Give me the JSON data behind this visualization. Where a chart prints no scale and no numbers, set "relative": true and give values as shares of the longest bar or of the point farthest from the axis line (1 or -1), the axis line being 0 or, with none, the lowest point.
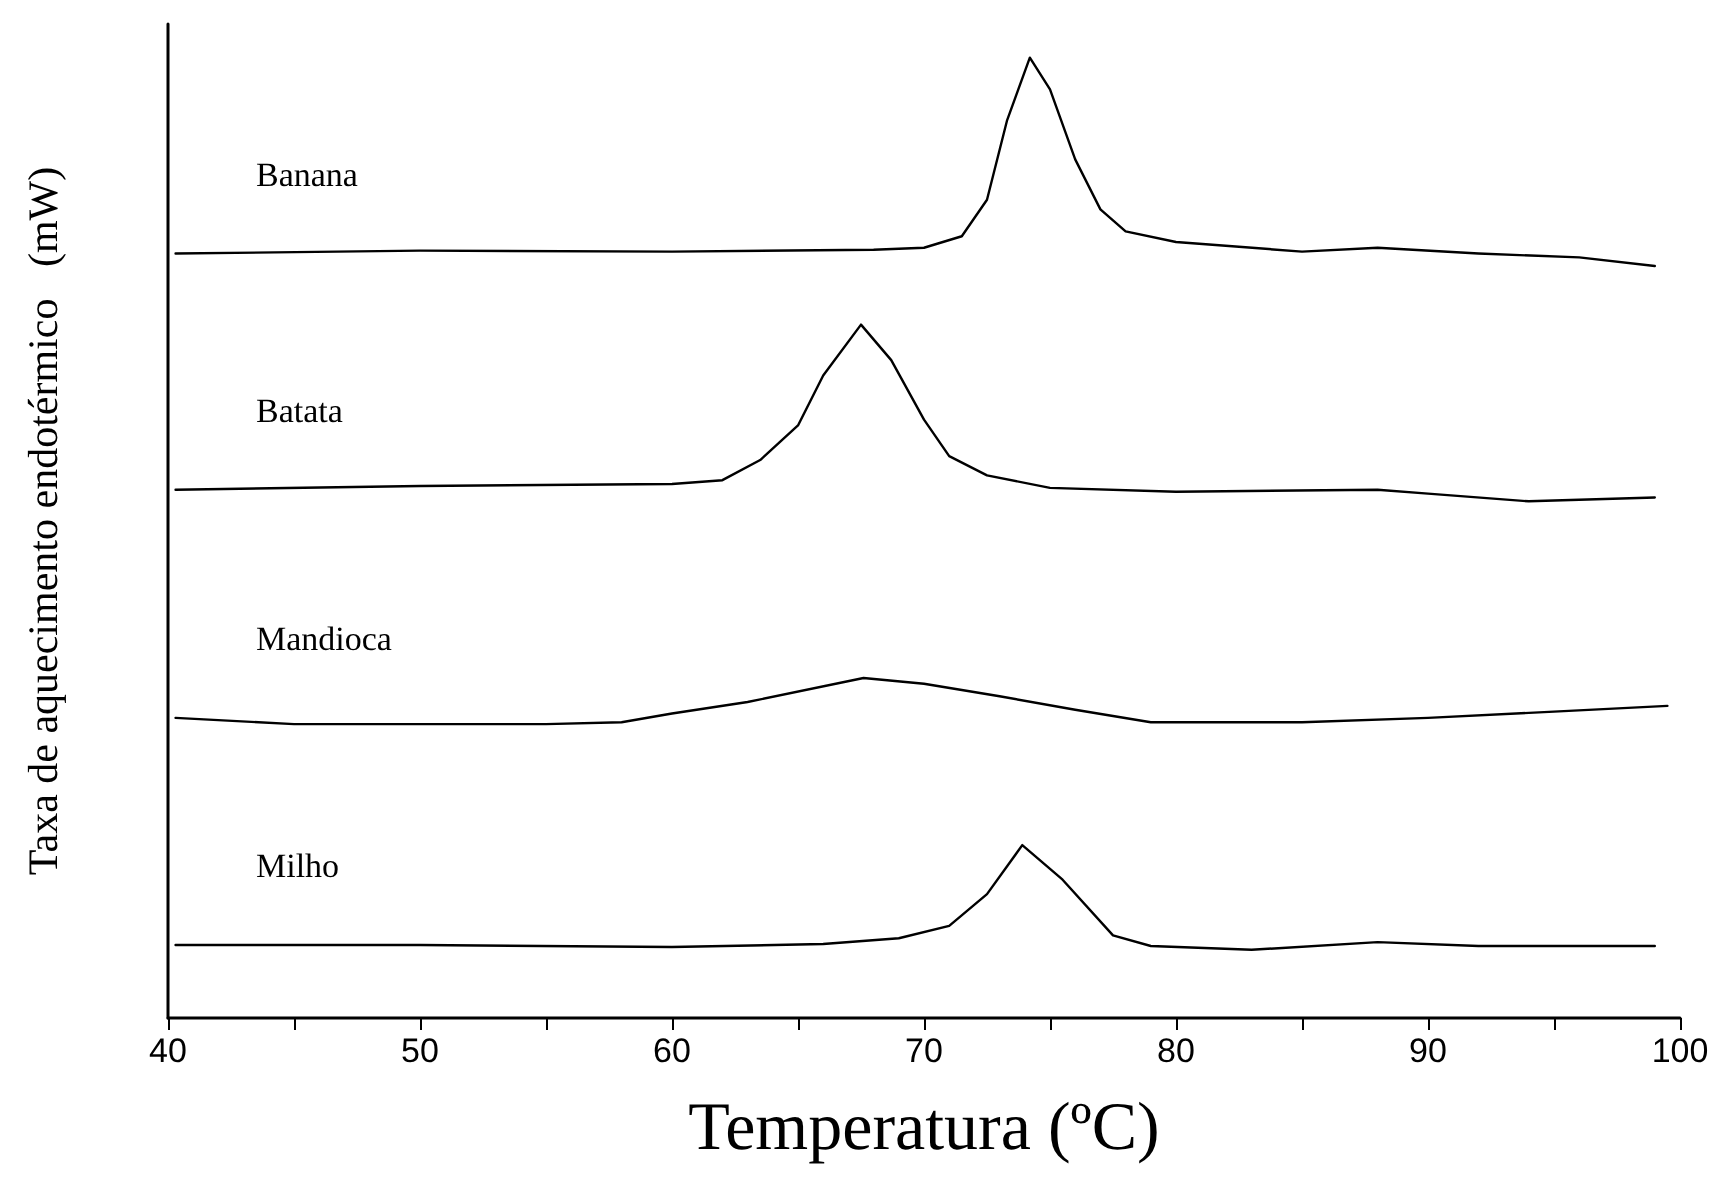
{
  "chart_data": {
    "type": "line",
    "relative": true,
    "xlabel": "Temperatura (ºC)",
    "ylabel": "Taxa de aquecimento endotérmico   (mW)",
    "xlim": [
      40,
      100
    ],
    "xticks": [
      40,
      50,
      60,
      70,
      80,
      90,
      100
    ],
    "tick_labels": "x",
    "grid": false,
    "legend": false,
    "marker": "none",
    "line_style": "solid",
    "series": [
      {
        "name": "Banana",
        "color": "#000000",
        "x": [
          40.3,
          50,
          60,
          68,
          70,
          71.5,
          72.5,
          73.3,
          74.2,
          75,
          76,
          77,
          78,
          80,
          85,
          88,
          92,
          96,
          99
        ],
        "values": [
          0.796,
          0.799,
          0.798,
          0.8,
          0.802,
          0.814,
          0.852,
          0.935,
          1.0,
          0.967,
          0.894,
          0.842,
          0.819,
          0.808,
          0.798,
          0.802,
          0.796,
          0.792,
          0.783
        ]
      },
      {
        "name": "Batata",
        "color": "#000000",
        "x": [
          40.3,
          50,
          60,
          62,
          63.5,
          65,
          66,
          67.5,
          68.7,
          70,
          71,
          72.5,
          75,
          80,
          88,
          90,
          94,
          99
        ],
        "values": [
          0.55,
          0.554,
          0.556,
          0.56,
          0.581,
          0.617,
          0.669,
          0.722,
          0.685,
          0.623,
          0.585,
          0.565,
          0.552,
          0.548,
          0.55,
          0.546,
          0.538,
          0.542
        ]
      },
      {
        "name": "Mandioca",
        "color": "#000000",
        "x": [
          40.3,
          45,
          55,
          58,
          60,
          63,
          67.6,
          70,
          73,
          76,
          79,
          85,
          90,
          95,
          99.5
        ],
        "values": [
          0.3125,
          0.306,
          0.306,
          0.308,
          0.317,
          0.329,
          0.354,
          0.348,
          0.335,
          0.321,
          0.308,
          0.308,
          0.3125,
          0.319,
          0.325
        ]
      },
      {
        "name": "Milho",
        "color": "#000000",
        "x": [
          40.3,
          50,
          60,
          66,
          69,
          71,
          72.5,
          73.9,
          75.5,
          77.5,
          79,
          83,
          88,
          92,
          99
        ],
        "values": [
          0.076,
          0.076,
          0.074,
          0.077,
          0.083,
          0.096,
          0.129,
          0.18,
          0.144,
          0.086,
          0.075,
          0.071,
          0.079,
          0.075,
          0.075
        ]
      }
    ]
  }
}
